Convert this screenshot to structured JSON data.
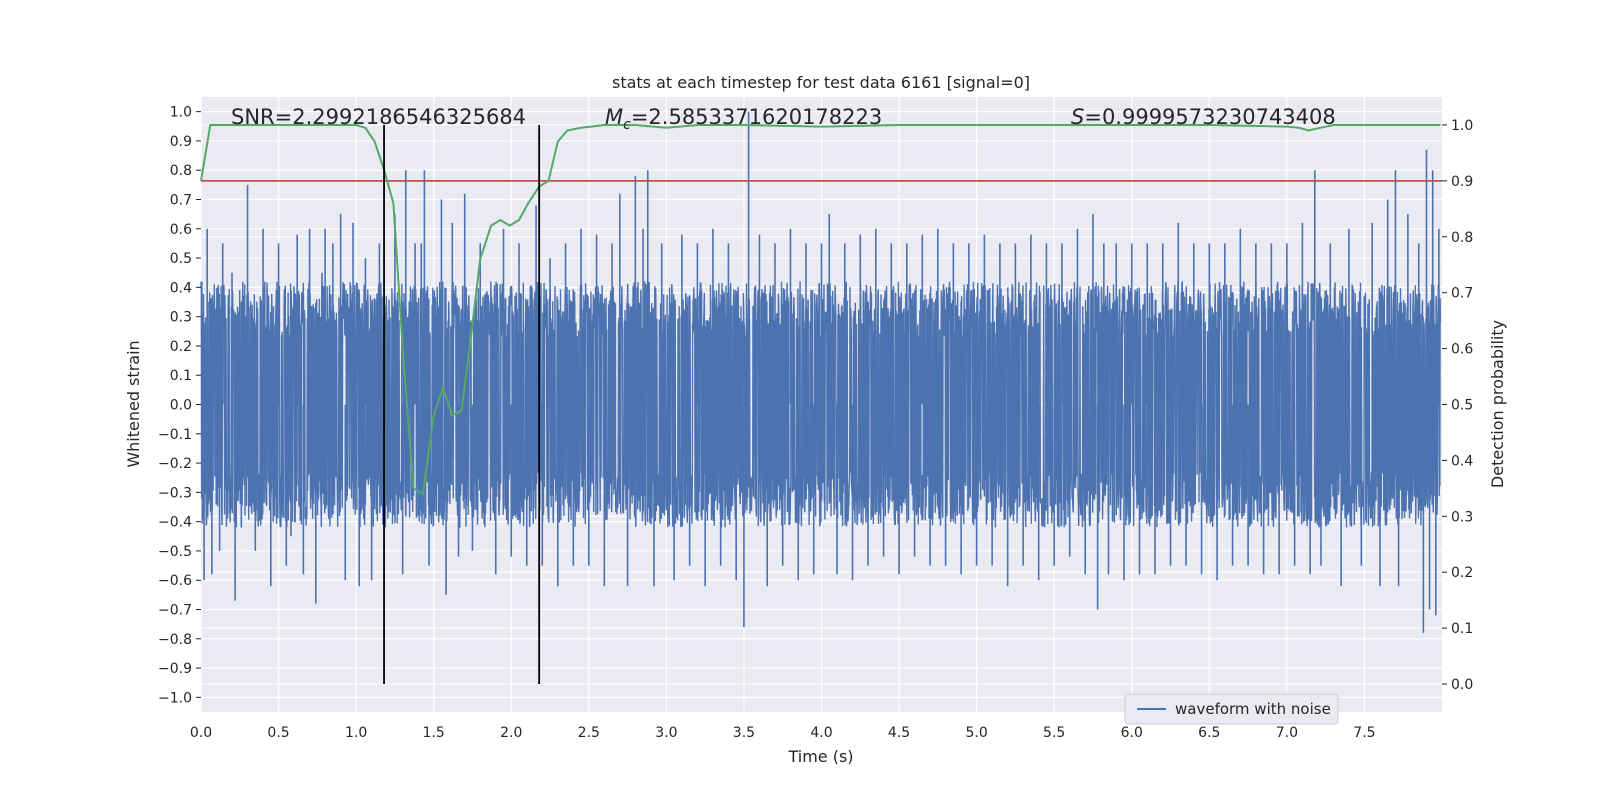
{
  "chart_data": {
    "type": "line",
    "title": "stats at each timestep for test data 6161 [signal=0]",
    "xlabel": "Time (s)",
    "ylabel_left": "Whitened strain",
    "ylabel_right": "Detection probability",
    "xlim": [
      0.0,
      8.0
    ],
    "ylim_left": [
      -1.05,
      1.05
    ],
    "ylim_right": [
      -0.05,
      1.05
    ],
    "x_ticks": [
      "0.0",
      "0.5",
      "1.0",
      "1.5",
      "2.0",
      "2.5",
      "3.0",
      "3.5",
      "4.0",
      "4.5",
      "5.0",
      "5.5",
      "6.0",
      "6.5",
      "7.0",
      "7.5"
    ],
    "y_ticks_left": [
      "1.0",
      "0.9",
      "0.8",
      "0.7",
      "0.6",
      "0.5",
      "0.4",
      "0.3",
      "0.2",
      "0.1",
      "0.0",
      "−0.1",
      "−0.2",
      "−0.3",
      "−0.4",
      "−0.5",
      "−0.6",
      "−0.7",
      "−0.8",
      "−0.9",
      "−1.0"
    ],
    "y_ticks_right": [
      "1.0",
      "0.9",
      "0.8",
      "0.7",
      "0.6",
      "0.5",
      "0.4",
      "0.3",
      "0.2",
      "0.1",
      "0.0"
    ],
    "annotations": {
      "snr": "SNR=2.2992186546325684",
      "mc_symbol": "M",
      "mc_sub": "c",
      "mc_value": "=2.5853371620178223",
      "s_symbol": "S",
      "s_value": "=0.9999573230743408"
    },
    "threshold": {
      "value": 0.9,
      "color": "#c44e52"
    },
    "vertical_lines": [
      1.18,
      2.18
    ],
    "legend": {
      "label": "waveform with noise",
      "position": "lower-right"
    },
    "grid": true,
    "series": [
      {
        "name": "waveform with noise",
        "color": "#4c72b0",
        "axis": "left",
        "kind": "noise",
        "n_samples": 4000,
        "envelope_pos": 0.42,
        "envelope_neg": -0.42,
        "spikes": [
          [
            0.02,
            -0.6
          ],
          [
            0.04,
            0.6
          ],
          [
            0.07,
            -0.58
          ],
          [
            0.12,
            -0.5
          ],
          [
            0.14,
            0.55
          ],
          [
            0.2,
            0.45
          ],
          [
            0.22,
            -0.67
          ],
          [
            0.26,
            -0.42
          ],
          [
            0.3,
            0.75
          ],
          [
            0.35,
            -0.5
          ],
          [
            0.4,
            0.6
          ],
          [
            0.45,
            -0.62
          ],
          [
            0.5,
            0.55
          ],
          [
            0.55,
            -0.55
          ],
          [
            0.58,
            -0.45
          ],
          [
            0.62,
            0.58
          ],
          [
            0.66,
            -0.58
          ],
          [
            0.7,
            0.6
          ],
          [
            0.74,
            -0.68
          ],
          [
            0.78,
            0.45
          ],
          [
            0.8,
            0.6
          ],
          [
            0.85,
            0.55
          ],
          [
            0.9,
            0.65
          ],
          [
            0.93,
            -0.6
          ],
          [
            0.98,
            0.62
          ],
          [
            1.02,
            -0.62
          ],
          [
            1.06,
            0.5
          ],
          [
            1.1,
            -0.6
          ],
          [
            1.15,
            0.55
          ],
          [
            1.25,
            0.65
          ],
          [
            1.3,
            -0.58
          ],
          [
            1.32,
            0.8
          ],
          [
            1.38,
            0.55
          ],
          [
            1.42,
            0.55
          ],
          [
            1.44,
            0.8
          ],
          [
            1.47,
            -0.55
          ],
          [
            1.55,
            0.7
          ],
          [
            1.58,
            -0.65
          ],
          [
            1.62,
            0.62
          ],
          [
            1.66,
            -0.52
          ],
          [
            1.7,
            0.72
          ],
          [
            1.75,
            -0.5
          ],
          [
            1.8,
            0.55
          ],
          [
            1.9,
            -0.58
          ],
          [
            1.95,
            0.6
          ],
          [
            2.0,
            -0.52
          ],
          [
            2.05,
            0.55
          ],
          [
            2.1,
            -0.55
          ],
          [
            2.16,
            0.68
          ],
          [
            2.2,
            -0.55
          ],
          [
            2.25,
            0.5
          ],
          [
            2.3,
            -0.62
          ],
          [
            2.35,
            0.55
          ],
          [
            2.4,
            -0.55
          ],
          [
            2.45,
            0.6
          ],
          [
            2.5,
            -0.55
          ],
          [
            2.55,
            0.58
          ],
          [
            2.6,
            -0.62
          ],
          [
            2.65,
            0.55
          ],
          [
            2.7,
            0.72
          ],
          [
            2.75,
            -0.62
          ],
          [
            2.8,
            0.78
          ],
          [
            2.85,
            0.6
          ],
          [
            2.88,
            0.8
          ],
          [
            2.92,
            -0.62
          ],
          [
            2.97,
            0.55
          ],
          [
            3.05,
            -0.6
          ],
          [
            3.1,
            0.58
          ],
          [
            3.15,
            -0.55
          ],
          [
            3.2,
            0.55
          ],
          [
            3.25,
            -0.62
          ],
          [
            3.3,
            0.6
          ],
          [
            3.35,
            -0.55
          ],
          [
            3.4,
            0.55
          ],
          [
            3.45,
            -0.6
          ],
          [
            3.5,
            -0.76
          ],
          [
            3.53,
            1.0
          ],
          [
            3.6,
            0.58
          ],
          [
            3.65,
            -0.62
          ],
          [
            3.7,
            0.55
          ],
          [
            3.75,
            -0.55
          ],
          [
            3.8,
            0.6
          ],
          [
            3.85,
            -0.6
          ],
          [
            3.9,
            0.55
          ],
          [
            3.95,
            -0.58
          ],
          [
            4.0,
            0.55
          ],
          [
            4.05,
            0.65
          ],
          [
            4.1,
            -0.58
          ],
          [
            4.15,
            0.55
          ],
          [
            4.2,
            -0.6
          ],
          [
            4.25,
            0.58
          ],
          [
            4.3,
            -0.55
          ],
          [
            4.35,
            0.6
          ],
          [
            4.4,
            -0.52
          ],
          [
            4.45,
            0.55
          ],
          [
            4.5,
            -0.58
          ],
          [
            4.55,
            0.55
          ],
          [
            4.6,
            -0.52
          ],
          [
            4.65,
            0.58
          ],
          [
            4.7,
            -0.55
          ],
          [
            4.75,
            0.6
          ],
          [
            4.8,
            -0.55
          ],
          [
            4.85,
            0.55
          ],
          [
            4.9,
            -0.58
          ],
          [
            4.95,
            0.55
          ],
          [
            5.0,
            -0.55
          ],
          [
            5.05,
            0.58
          ],
          [
            5.1,
            -0.55
          ],
          [
            5.15,
            0.55
          ],
          [
            5.2,
            -0.62
          ],
          [
            5.25,
            0.55
          ],
          [
            5.3,
            -0.55
          ],
          [
            5.35,
            0.58
          ],
          [
            5.4,
            -0.6
          ],
          [
            5.45,
            0.55
          ],
          [
            5.5,
            -0.55
          ],
          [
            5.55,
            0.55
          ],
          [
            5.6,
            -0.52
          ],
          [
            5.65,
            0.6
          ],
          [
            5.7,
            -0.58
          ],
          [
            5.75,
            0.65
          ],
          [
            5.78,
            -0.7
          ],
          [
            5.82,
            0.55
          ],
          [
            5.85,
            -0.58
          ],
          [
            5.9,
            0.55
          ],
          [
            5.95,
            -0.6
          ],
          [
            6.0,
            0.55
          ],
          [
            6.05,
            -0.58
          ],
          [
            6.1,
            0.55
          ],
          [
            6.15,
            -0.58
          ],
          [
            6.2,
            0.55
          ],
          [
            6.25,
            -0.55
          ],
          [
            6.3,
            0.62
          ],
          [
            6.35,
            -0.55
          ],
          [
            6.4,
            0.55
          ],
          [
            6.45,
            -0.58
          ],
          [
            6.5,
            0.55
          ],
          [
            6.55,
            -0.6
          ],
          [
            6.6,
            0.55
          ],
          [
            6.65,
            -0.55
          ],
          [
            6.7,
            0.6
          ],
          [
            6.75,
            -0.55
          ],
          [
            6.8,
            0.55
          ],
          [
            6.85,
            -0.58
          ],
          [
            6.9,
            0.55
          ],
          [
            6.95,
            -0.58
          ],
          [
            7.0,
            0.55
          ],
          [
            7.05,
            -0.55
          ],
          [
            7.1,
            0.62
          ],
          [
            7.15,
            -0.58
          ],
          [
            7.18,
            0.8
          ],
          [
            7.22,
            -0.55
          ],
          [
            7.28,
            0.55
          ],
          [
            7.35,
            -0.62
          ],
          [
            7.4,
            0.6
          ],
          [
            7.48,
            -0.55
          ],
          [
            7.55,
            0.62
          ],
          [
            7.6,
            -0.62
          ],
          [
            7.65,
            0.7
          ],
          [
            7.7,
            0.8
          ],
          [
            7.72,
            -0.62
          ],
          [
            7.78,
            0.65
          ],
          [
            7.85,
            0.55
          ],
          [
            7.88,
            -0.78
          ],
          [
            7.9,
            0.87
          ],
          [
            7.92,
            -0.7
          ],
          [
            7.94,
            0.8
          ],
          [
            7.96,
            -0.72
          ],
          [
            7.98,
            0.6
          ]
        ]
      },
      {
        "name": "detection probability",
        "color": "#55a868",
        "axis": "right",
        "x": [
          0.0,
          0.06,
          0.2,
          0.4,
          0.6,
          0.8,
          1.0,
          1.06,
          1.12,
          1.18,
          1.24,
          1.3,
          1.37,
          1.43,
          1.5,
          1.56,
          1.62,
          1.68,
          1.74,
          1.8,
          1.87,
          1.93,
          1.99,
          2.05,
          2.11,
          2.18,
          2.24,
          2.3,
          2.36,
          2.45,
          2.6,
          2.8,
          3.0,
          3.2,
          3.5,
          4.0,
          4.5,
          5.0,
          5.5,
          6.0,
          6.5,
          7.0,
          7.08,
          7.14,
          7.2,
          7.3,
          7.5,
          7.7,
          7.99
        ],
        "y": [
          0.9,
          1.0,
          1.0,
          1.0,
          1.0,
          1.0,
          1.0,
          0.995,
          0.97,
          0.92,
          0.86,
          0.6,
          0.35,
          0.34,
          0.48,
          0.53,
          0.48,
          0.49,
          0.62,
          0.76,
          0.82,
          0.83,
          0.82,
          0.83,
          0.86,
          0.89,
          0.9,
          0.97,
          0.99,
          0.995,
          1.0,
          1.0,
          0.995,
          1.0,
          1.0,
          0.997,
          1.0,
          1.0,
          1.0,
          1.0,
          1.0,
          0.997,
          0.995,
          0.99,
          0.994,
          1.0,
          1.0,
          1.0,
          1.0
        ]
      }
    ]
  }
}
